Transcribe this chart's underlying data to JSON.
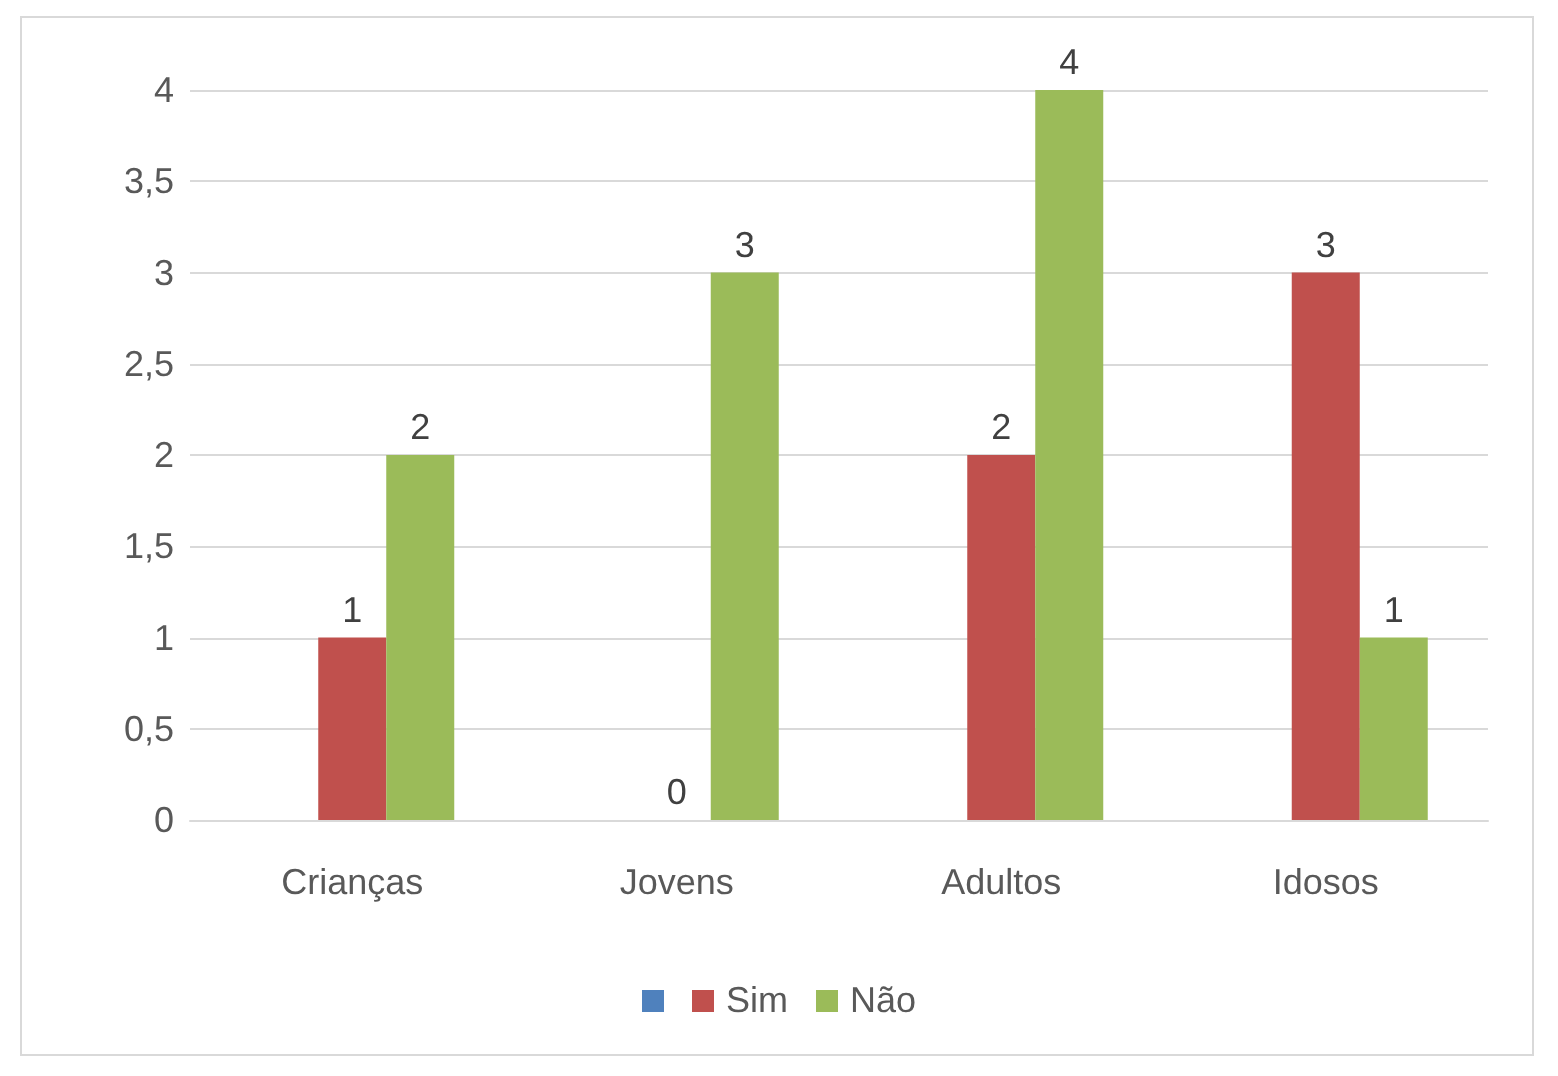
{
  "chart_data": {
    "type": "bar",
    "categories": [
      "Crianças",
      "Jovens",
      "Adultos",
      "Idosos"
    ],
    "series": [
      {
        "color": "#4f81bd",
        "values": [
          null,
          null,
          null,
          null
        ]
      },
      {
        "name": "Sim",
        "color": "#c0504d",
        "values": [
          1,
          0,
          2,
          3
        ]
      },
      {
        "name": "Não",
        "color": "#9bbb59",
        "values": [
          2,
          3,
          4,
          1
        ]
      }
    ],
    "ylim": [
      0,
      4
    ],
    "yticks": [
      0,
      {
        "value": 0.5,
        "label": "0,5"
      },
      1,
      {
        "value": 1.5,
        "label": "1,5"
      },
      2,
      {
        "value": 2.5,
        "label": "2,5"
      },
      3,
      {
        "value": 3.5,
        "label": "3,5"
      },
      4
    ],
    "grid": "y",
    "legend": "bottom",
    "data_labels": true
  }
}
